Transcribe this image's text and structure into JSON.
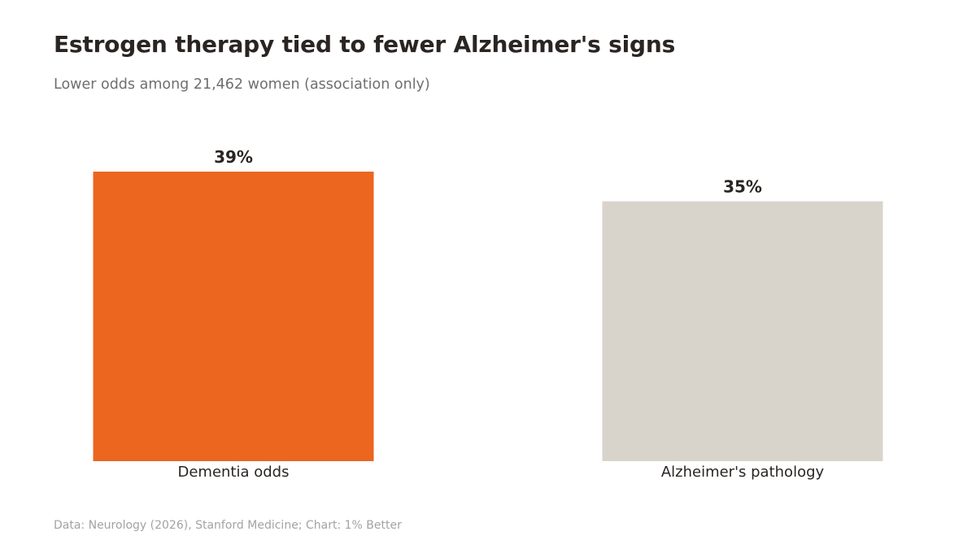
{
  "header": {
    "title": "Estrogen therapy tied to fewer Alzheimer's signs",
    "subtitle": "Lower odds among 21,462 women (association only)"
  },
  "footer": {
    "source": "Data: Neurology (2026), Stanford Medicine; Chart: 1% Better"
  },
  "colors": {
    "highlight": "#ec661f",
    "muted": "#d9d4cb",
    "value_text": "#2a2522",
    "category_text": "#2a2522"
  },
  "chart_data": {
    "type": "bar",
    "title": "Estrogen therapy tied to fewer Alzheimer's signs",
    "subtitle": "Lower odds among 21,462 women (association only)",
    "categories": [
      "Dementia odds",
      "Alzheimer's pathology"
    ],
    "values": [
      39,
      35
    ],
    "value_labels": [
      "39%",
      "35%"
    ],
    "unit": "%",
    "bar_colors": [
      "#ec661f",
      "#d9d4cb"
    ],
    "ylim": [
      0,
      39
    ],
    "xlabel": "",
    "ylabel": "",
    "grid": false,
    "legend": "none"
  }
}
